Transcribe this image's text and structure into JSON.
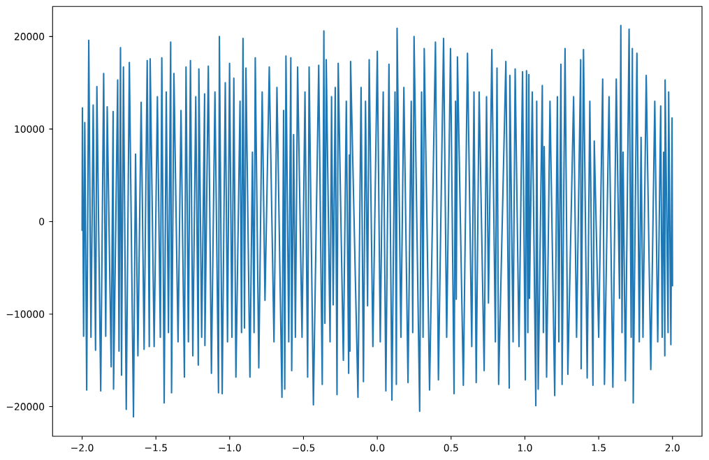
{
  "chart_data": {
    "type": "line",
    "color": "#1f77b4",
    "line_style": "solid",
    "x": [
      -2.0,
      -1.998,
      -1.99,
      -1.982,
      -1.969,
      -1.955,
      -1.94,
      -1.925,
      -1.909,
      -1.9,
      -1.874,
      -1.854,
      -1.84,
      -1.83,
      -1.803,
      -1.79,
      -1.787,
      -1.759,
      -1.75,
      -1.74,
      -1.733,
      -1.72,
      -1.701,
      -1.68,
      -1.652,
      -1.638,
      -1.622,
      -1.6,
      -1.58,
      -1.559,
      -1.545,
      -1.539,
      -1.512,
      -1.49,
      -1.47,
      -1.46,
      -1.444,
      -1.43,
      -1.415,
      -1.4,
      -1.394,
      -1.378,
      -1.35,
      -1.33,
      -1.307,
      -1.296,
      -1.28,
      -1.266,
      -1.25,
      -1.23,
      -1.213,
      -1.209,
      -1.19,
      -1.17,
      -1.168,
      -1.145,
      -1.124,
      -1.1,
      -1.076,
      -1.07,
      -1.051,
      -1.03,
      -1.015,
      -1.001,
      -0.985,
      -0.972,
      -0.958,
      -0.93,
      -0.92,
      -0.91,
      -0.9,
      -0.89,
      -0.863,
      -0.846,
      -0.835,
      -0.827,
      -0.803,
      -0.78,
      -0.761,
      -0.732,
      -0.7,
      -0.68,
      -0.646,
      -0.635,
      -0.627,
      -0.619,
      -0.6,
      -0.586,
      -0.58,
      -0.567,
      -0.555,
      -0.54,
      -0.51,
      -0.49,
      -0.472,
      -0.462,
      -0.433,
      -0.397,
      -0.373,
      -0.362,
      -0.355,
      -0.346,
      -0.32,
      -0.31,
      -0.299,
      -0.285,
      -0.273,
      -0.265,
      -0.23,
      -0.21,
      -0.194,
      -0.189,
      -0.185,
      -0.181,
      -0.131,
      -0.11,
      -0.094,
      -0.08,
      -0.066,
      -0.055,
      -0.03,
      0.0,
      0.02,
      0.04,
      0.058,
      0.079,
      0.099,
      0.12,
      0.129,
      0.134,
      0.16,
      0.18,
      0.208,
      0.23,
      0.24,
      0.249,
      0.287,
      0.3,
      0.31,
      0.318,
      0.354,
      0.394,
      0.414,
      0.449,
      0.47,
      0.496,
      0.52,
      0.53,
      0.535,
      0.543,
      0.583,
      0.611,
      0.64,
      0.655,
      0.67,
      0.69,
      0.724,
      0.74,
      0.753,
      0.776,
      0.8,
      0.811,
      0.822,
      0.871,
      0.894,
      0.898,
      0.92,
      0.934,
      0.96,
      0.984,
      1.003,
      1.011,
      1.02,
      1.027,
      1.031,
      1.05,
      1.074,
      1.08,
      1.09,
      1.118,
      1.125,
      1.131,
      1.147,
      1.17,
      1.202,
      1.22,
      1.23,
      1.244,
      1.252,
      1.272,
      1.291,
      1.33,
      1.35,
      1.378,
      1.381,
      1.397,
      1.422,
      1.44,
      1.461,
      1.47,
      1.5,
      1.527,
      1.539,
      1.57,
      1.596,
      1.619,
      1.641,
      1.65,
      1.658,
      1.665,
      1.681,
      1.706,
      1.72,
      1.728,
      1.734,
      1.759,
      1.775,
      1.787,
      1.8,
      1.822,
      1.853,
      1.88,
      1.9,
      1.92,
      1.93,
      1.94,
      1.948,
      1.95,
      1.97,
      1.974,
      1.989,
      1.997,
      2.0
    ],
    "values": [
      -1000,
      12300,
      -12400,
      10700,
      -18200,
      19600,
      -12500,
      12600,
      -13900,
      14600,
      -18300,
      16000,
      -12400,
      12400,
      -15700,
      11900,
      -18100,
      15300,
      -14000,
      18800,
      -16600,
      16700,
      -20300,
      17200,
      -21100,
      7300,
      -14500,
      12900,
      -13800,
      17400,
      -13500,
      17600,
      -13500,
      13500,
      -12500,
      17700,
      -19600,
      14000,
      -12000,
      19400,
      -18500,
      16000,
      -13000,
      12000,
      -16800,
      16700,
      -13000,
      17400,
      -14500,
      13500,
      -15500,
      16500,
      -12500,
      13800,
      -13400,
      16800,
      -16400,
      14000,
      -18500,
      20000,
      -18600,
      15000,
      -13000,
      17100,
      -12500,
      15500,
      -16800,
      13000,
      -12000,
      19800,
      -11500,
      16600,
      -16800,
      7500,
      -12000,
      17700,
      -15800,
      14000,
      -8500,
      16700,
      -13000,
      14500,
      -19000,
      12000,
      -18100,
      17900,
      -13000,
      17700,
      -16100,
      9400,
      -12500,
      16700,
      -12500,
      14000,
      -16800,
      16700,
      -19800,
      16900,
      -17600,
      20600,
      -11000,
      17500,
      -13000,
      13500,
      -9000,
      14500,
      -18700,
      17100,
      -15000,
      13000,
      -16400,
      7200,
      -14000,
      17300,
      -19000,
      14500,
      -17300,
      13000,
      -9100,
      17500,
      -13500,
      18400,
      -13000,
      14000,
      -18300,
      17000,
      -19300,
      14000,
      -17600,
      20900,
      -12500,
      14500,
      -17400,
      13000,
      -12000,
      20000,
      -20500,
      14000,
      -12500,
      18700,
      -18200,
      19400,
      -17100,
      19800,
      -12500,
      18700,
      -18600,
      13000,
      -8400,
      17800,
      -17700,
      18200,
      -13500,
      14000,
      -17400,
      14000,
      -16100,
      13500,
      -8800,
      18600,
      -13000,
      16600,
      -17600,
      17300,
      -18000,
      15800,
      -13000,
      16500,
      -13500,
      16200,
      -17100,
      16300,
      -12000,
      15900,
      -8300,
      14000,
      -19900,
      13000,
      -18100,
      14700,
      -12000,
      8100,
      -16800,
      13000,
      -18800,
      13500,
      -13000,
      17000,
      -17600,
      18700,
      -16500,
      13500,
      -12500,
      17500,
      -15900,
      18600,
      -16900,
      13000,
      -17700,
      8700,
      -12500,
      15400,
      -17600,
      13500,
      -17900,
      15400,
      -8300,
      21200,
      -12000,
      7500,
      -17200,
      20800,
      -12500,
      18700,
      -19600,
      18200,
      -13000,
      9100,
      -12500,
      15800,
      -16000,
      13000,
      -13000,
      12500,
      -12500,
      7500,
      -14500,
      15300,
      -12000,
      14000,
      -13300,
      11200,
      -7000
    ],
    "xlim": [
      -2.2,
      2.2
    ],
    "ylim": [
      -23200,
      23250
    ],
    "xticks": [
      {
        "value": -2,
        "label": "−2.0"
      },
      {
        "value": -1.5,
        "label": "−1.5"
      },
      {
        "value": -1,
        "label": "−1.0"
      },
      {
        "value": -0.5,
        "label": "−0.5"
      },
      {
        "value": 0,
        "label": "0.0"
      },
      0.5,
      {
        "value": 1,
        "label": "1.0"
      },
      1.5,
      {
        "value": 2,
        "label": "2.0"
      }
    ],
    "yticks": [
      {
        "value": -20000,
        "label": "−20000"
      },
      {
        "value": -10000,
        "label": "−10000"
      },
      0,
      10000,
      20000
    ]
  }
}
